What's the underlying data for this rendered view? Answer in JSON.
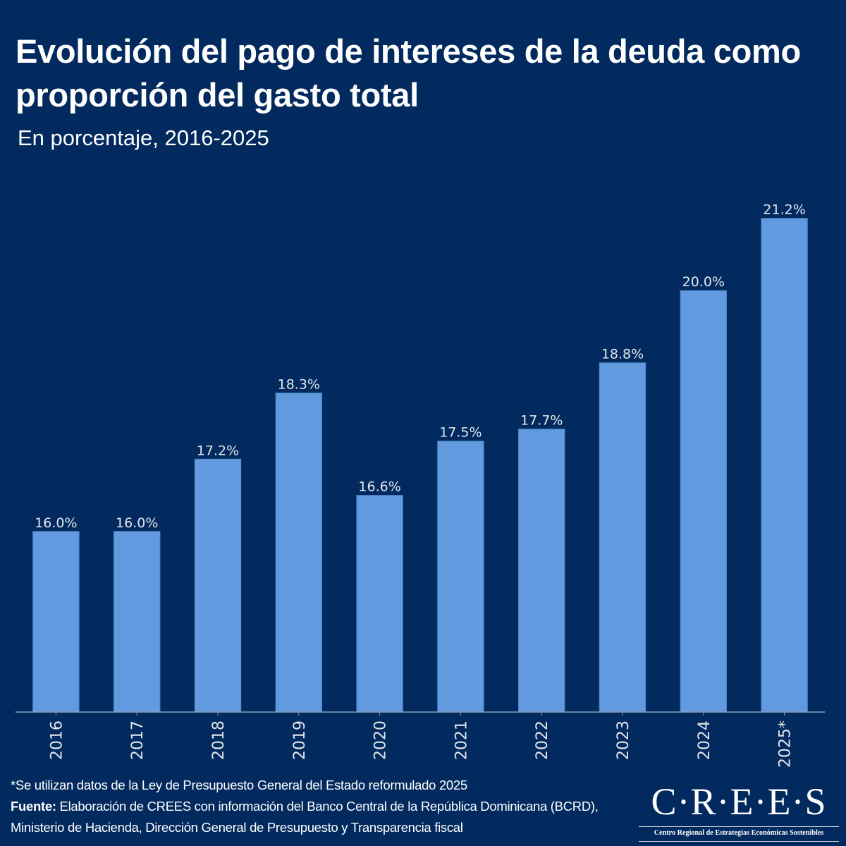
{
  "header": {
    "title": "Evolución del pago de intereses de la deuda como proporción del gasto total",
    "subtitle": "En porcentaje, 2016-2025"
  },
  "colors": {
    "background": "#022a5e",
    "bar": "#619ade",
    "label": "#e2e6ec",
    "axis": "#8a9bb8"
  },
  "chart_data": {
    "type": "bar",
    "title": "Evolución del pago de intereses de la deuda como proporción del gasto total",
    "subtitle": "En porcentaje, 2016-2025",
    "xlabel": "",
    "ylabel": "",
    "categories": [
      "2016",
      "2017",
      "2018",
      "2019",
      "2020",
      "2021",
      "2022",
      "2023",
      "2024",
      "2025*"
    ],
    "values": [
      16.0,
      16.0,
      17.2,
      18.3,
      16.6,
      17.5,
      17.7,
      18.8,
      20.0,
      21.2
    ],
    "data_labels": [
      "16.0%",
      "16.0%",
      "17.2%",
      "18.3%",
      "16.6%",
      "17.5%",
      "17.7%",
      "18.8%",
      "20.0%",
      "21.2%"
    ],
    "ylim": [
      13,
      22.6
    ],
    "grid": false,
    "y_axis_visible": false,
    "legend": "none"
  },
  "footer": {
    "note": "*Se utilizan datos de la Ley de Presupuesto General del Estado reformulado 2025",
    "source_label": "Fuente:",
    "source_text": " Elaboración de CREES con información del Banco Central de la República Dominicana (BCRD), Ministerio de Hacienda, Dirección General de Presupuesto y Transparencia fiscal"
  },
  "logo": {
    "name": "C·R·E·E·S",
    "full_name": "Centro Regional de Estrategias Económicas Sostenibles"
  }
}
